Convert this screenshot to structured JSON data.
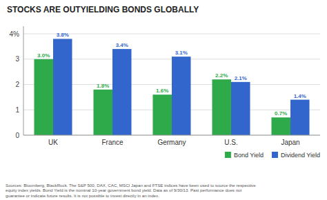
{
  "chart_data": {
    "type": "bar",
    "title": "STOCKS ARE OUTYIELDING BONDS GLOBALLY",
    "categories": [
      "UK",
      "France",
      "Germany",
      "U.S.",
      "Japan"
    ],
    "series": [
      {
        "name": "Bond Yield",
        "color": "#2eaa4a",
        "values": [
          3.0,
          1.8,
          1.6,
          2.2,
          0.7
        ],
        "value_labels": [
          "3.0%",
          "1.8%",
          "1.6%",
          "2.2%",
          "0.7%"
        ]
      },
      {
        "name": "Dividend Yield",
        "color": "#3366cc",
        "values": [
          3.8,
          3.4,
          3.1,
          2.1,
          1.4
        ],
        "value_labels": [
          "3.8%",
          "3.4%",
          "3.1%",
          "2.1%",
          "1.4%"
        ]
      }
    ],
    "ylim": [
      0,
      4.3
    ],
    "yticks": [
      0,
      1,
      2,
      3,
      {
        "value": 4,
        "label": "4%"
      }
    ],
    "grid": true,
    "data_labels": true,
    "legend": "bottom-right",
    "footnote": "Sources: Bloomberg, BlackRock. The S&P 500, DAX, CAC, MSCI Japan and FTSE indices have been used to source the respective\nequity index yields. Bond Yield is the nominal 10-year government bond yield. Data as of 9/30/13. Past performance does not\nguarantee or indicate future results. It is not possible to invest directly in an index."
  }
}
